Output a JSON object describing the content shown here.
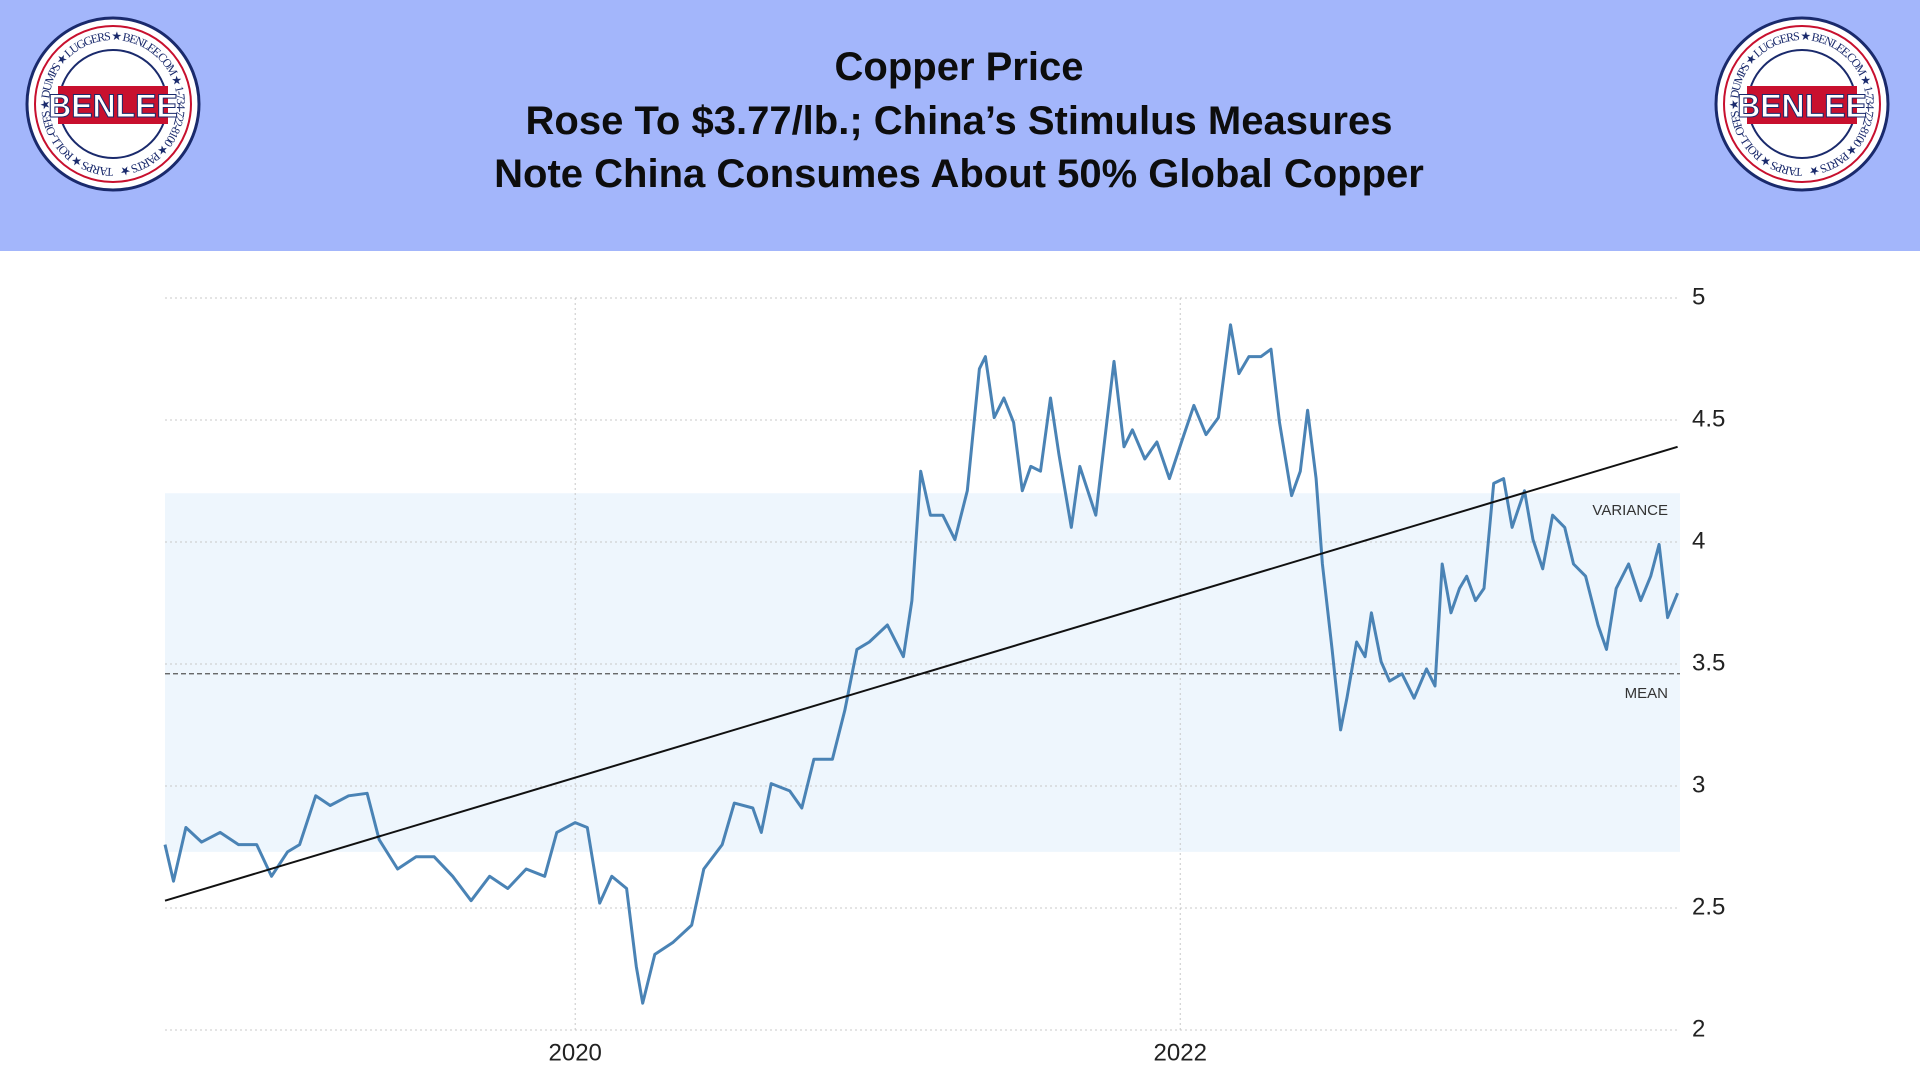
{
  "header": {
    "title_lines": [
      "Copper Price",
      "Rose To $3.77/lb.; China’s Stimulus Measures",
      "Note China Consumes About 50% Global Copper"
    ]
  },
  "logo": {
    "name": "BENLEE",
    "ring": "TARPS ★ ROLL-OFFS ★ DUMPS ★ LUGGERS ★ BENLEE.COM ★ 1-734-722-8100 ★ PARTS ★"
  },
  "chart_data": {
    "type": "line",
    "color": "#4a83b5",
    "grid": true,
    "yaxis_side": "right",
    "xlim": [
      2018.644,
      2023.652
    ],
    "xticks": [
      2020,
      2022
    ],
    "ylim": [
      2,
      5
    ],
    "yticks": [
      2,
      2.5,
      3,
      3.5,
      4,
      4.5,
      5
    ],
    "x": [
      2018.644,
      2018.672,
      2018.713,
      2018.765,
      2018.826,
      2018.887,
      2018.947,
      2018.996,
      2019.049,
      2019.089,
      2019.142,
      2019.19,
      2019.251,
      2019.312,
      2019.352,
      2019.413,
      2019.474,
      2019.534,
      2019.595,
      2019.656,
      2019.717,
      2019.777,
      2019.838,
      2019.899,
      2019.939,
      2020.0,
      2020.04,
      2020.081,
      2020.121,
      2020.17,
      2020.202,
      2020.223,
      2020.263,
      2020.324,
      2020.385,
      2020.425,
      2020.486,
      2020.526,
      2020.587,
      2020.615,
      2020.648,
      2020.709,
      2020.749,
      2020.789,
      2020.85,
      2020.891,
      2020.931,
      2020.972,
      2021.032,
      2021.085,
      2021.113,
      2021.142,
      2021.174,
      2021.215,
      2021.255,
      2021.296,
      2021.336,
      2021.356,
      2021.385,
      2021.417,
      2021.449,
      2021.478,
      2021.506,
      2021.538,
      2021.571,
      2021.599,
      2021.64,
      2021.668,
      2021.721,
      2021.781,
      2021.814,
      2021.842,
      2021.883,
      2021.923,
      2021.964,
      2022.004,
      2022.045,
      2022.085,
      2022.126,
      2022.166,
      2022.194,
      2022.227,
      2022.267,
      2022.3,
      2022.328,
      2022.368,
      2022.397,
      2022.421,
      2022.449,
      2022.47,
      2022.502,
      2022.53,
      2022.551,
      2022.583,
      2022.611,
      2022.632,
      2022.664,
      2022.692,
      2022.733,
      2022.773,
      2022.814,
      2022.842,
      2022.866,
      2022.895,
      2022.923,
      2022.947,
      2022.976,
      2023.004,
      2023.036,
      2023.069,
      2023.097,
      2023.138,
      2023.166,
      2023.198,
      2023.231,
      2023.271,
      2023.3,
      2023.34,
      2023.381,
      2023.409,
      2023.441,
      2023.482,
      2023.522,
      2023.555,
      2023.583,
      2023.611,
      2023.644
    ],
    "values": [
      2.76,
      2.61,
      2.83,
      2.77,
      2.81,
      2.76,
      2.76,
      2.63,
      2.73,
      2.76,
      2.96,
      2.92,
      2.96,
      2.97,
      2.78,
      2.66,
      2.71,
      2.71,
      2.63,
      2.53,
      2.63,
      2.58,
      2.66,
      2.63,
      2.81,
      2.85,
      2.83,
      2.52,
      2.63,
      2.58,
      2.26,
      2.11,
      2.31,
      2.36,
      2.43,
      2.66,
      2.76,
      2.93,
      2.91,
      2.81,
      3.01,
      2.98,
      2.91,
      3.11,
      3.11,
      3.31,
      3.56,
      3.59,
      3.66,
      3.53,
      3.76,
      4.29,
      4.11,
      4.11,
      4.01,
      4.21,
      4.71,
      4.76,
      4.51,
      4.59,
      4.49,
      4.21,
      4.31,
      4.29,
      4.59,
      4.36,
      4.06,
      4.31,
      4.11,
      4.74,
      4.39,
      4.46,
      4.34,
      4.41,
      4.26,
      4.41,
      4.56,
      4.44,
      4.51,
      4.89,
      4.69,
      4.76,
      4.76,
      4.79,
      4.49,
      4.19,
      4.29,
      4.54,
      4.26,
      3.91,
      3.56,
      3.23,
      3.36,
      3.59,
      3.53,
      3.71,
      3.51,
      3.43,
      3.46,
      3.36,
      3.48,
      3.41,
      3.91,
      3.71,
      3.81,
      3.86,
      3.76,
      3.81,
      4.24,
      4.26,
      4.06,
      4.21,
      4.01,
      3.89,
      4.11,
      4.06,
      3.91,
      3.86,
      3.66,
      3.56,
      3.81,
      3.91,
      3.76,
      3.86,
      3.99,
      3.69,
      3.79
    ],
    "trend": {
      "x": [
        2018.644,
        2023.644
      ],
      "values": [
        2.53,
        4.39
      ],
      "color": "#111111"
    },
    "mean": {
      "label": "MEAN",
      "value": 3.46
    },
    "variance": {
      "label": "VARIANCE",
      "range": [
        2.73,
        4.2
      ],
      "color": "#eef6fd"
    }
  }
}
